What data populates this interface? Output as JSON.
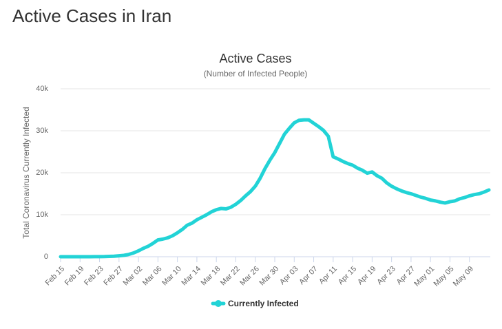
{
  "header": {
    "title": "Active Cases in Iran"
  },
  "chart_data": {
    "type": "line",
    "title": "Active Cases",
    "subtitle": "(Number of Infected People)",
    "y_label": "Total Coronavirus Currently Infected",
    "categories": [
      "Feb 15",
      null,
      null,
      null,
      "Feb 19",
      null,
      null,
      null,
      "Feb 23",
      null,
      null,
      null,
      "Feb 27",
      null,
      null,
      null,
      "Mar 02",
      null,
      null,
      null,
      "Mar 06",
      null,
      null,
      null,
      "Mar 10",
      null,
      null,
      null,
      "Mar 14",
      null,
      null,
      null,
      "Mar 18",
      null,
      null,
      null,
      "Mar 22",
      null,
      null,
      null,
      "Mar 26",
      null,
      null,
      null,
      "Mar 30",
      null,
      null,
      null,
      "Apr 03",
      null,
      null,
      null,
      "Apr 07",
      null,
      null,
      null,
      "Apr 11",
      null,
      null,
      null,
      "Apr 15",
      null,
      null,
      null,
      "Apr 19",
      null,
      null,
      null,
      "Apr 23",
      null,
      null,
      null,
      "Apr 27",
      null,
      null,
      null,
      "May 01",
      null,
      null,
      null,
      "May 05",
      null,
      null,
      null,
      "May 09",
      null,
      null,
      null,
      null
    ],
    "series": [
      {
        "name": "Currently Infected",
        "color": "#22d3d6",
        "values": [
          0,
          0,
          0,
          0,
          0,
          2,
          5,
          18,
          28,
          43,
          90,
          120,
          220,
          330,
          550,
          900,
          1400,
          2000,
          2500,
          3200,
          4000,
          4200,
          4500,
          5000,
          5700,
          6500,
          7500,
          8000,
          8800,
          9400,
          10000,
          10700,
          11200,
          11500,
          11400,
          11800,
          12500,
          13400,
          14500,
          15500,
          16800,
          18700,
          21000,
          23000,
          24800,
          27000,
          29200,
          30600,
          31900,
          32500,
          32600,
          32600,
          31800,
          31000,
          30100,
          28700,
          23800,
          23300,
          22700,
          22200,
          21800,
          21100,
          20600,
          19900,
          20200,
          19300,
          18700,
          17600,
          16800,
          16200,
          15700,
          15300,
          15000,
          14600,
          14200,
          13900,
          13500,
          13300,
          13000,
          12800,
          13100,
          13300,
          13800,
          14100,
          14500,
          14800,
          15000,
          15400,
          15900
        ]
      }
    ],
    "ylim": [
      0,
      40000
    ],
    "yticks": [
      0,
      {
        "value": 10000,
        "label": "10k"
      },
      {
        "value": 20000,
        "label": "20k"
      },
      {
        "value": 30000,
        "label": "30k"
      },
      {
        "value": 40000,
        "label": "40k"
      }
    ],
    "grid": true
  }
}
